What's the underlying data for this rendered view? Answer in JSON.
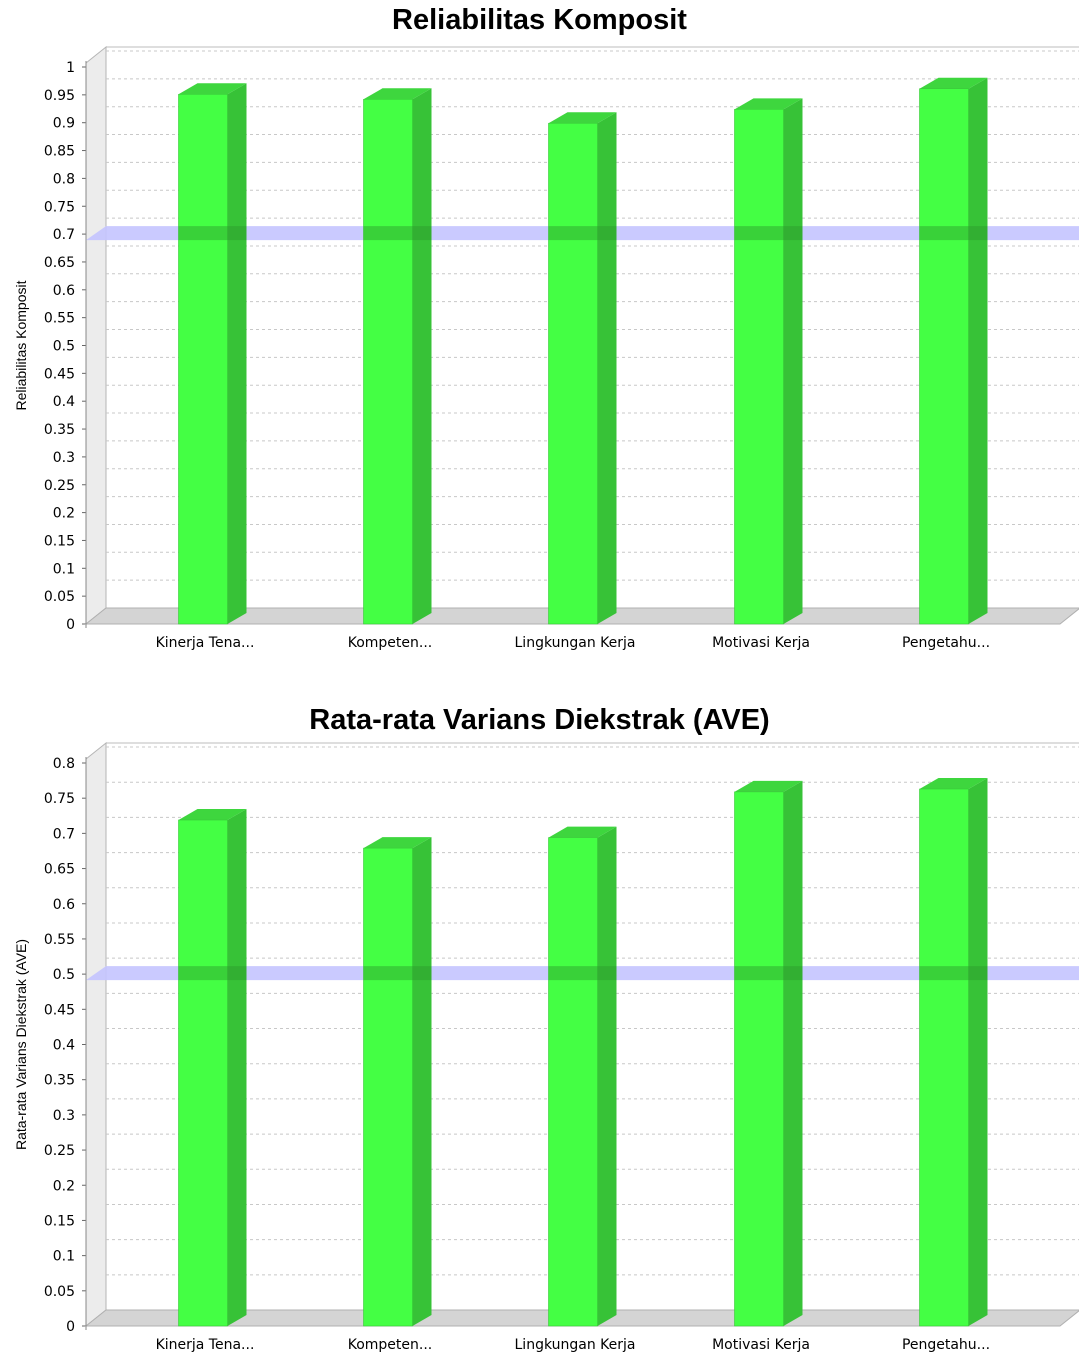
{
  "chart_data": [
    {
      "type": "bar",
      "title": "Reliabilitas Komposit",
      "xlabel": "",
      "ylabel": "Reliabilitas Komposit",
      "categories": [
        "Kinerja Tena...",
        "Kompeten...",
        "Lingkungan Kerja",
        "Motivasi Kerja",
        "Pengetahu..."
      ],
      "values": [
        0.951,
        0.942,
        0.899,
        0.924,
        0.961
      ],
      "threshold": 0.7,
      "ylim": [
        0,
        1
      ],
      "yticks": [
        "0",
        "0.05",
        "0.1",
        "0.15",
        "0.2",
        "0.25",
        "0.3",
        "0.35",
        "0.4",
        "0.45",
        "0.5",
        "0.55",
        "0.6",
        "0.65",
        "0.7",
        "0.75",
        "0.8",
        "0.85",
        "0.9",
        "0.95",
        "1"
      ],
      "grid": true,
      "style_3d": true,
      "colors": {
        "bar_front": "#44ff44",
        "bar_side": "#37c237",
        "bar_top": "#3ed63e",
        "threshold": "#c4c4ff",
        "grid": "#c8c8c8",
        "floor": "#d4d4d4"
      }
    },
    {
      "type": "bar",
      "title": "Rata-rata Varians Diekstrak (AVE)",
      "xlabel": "",
      "ylabel": "Rata-rata Varians Diekstrak (AVE)",
      "categories": [
        "Kinerja Tena...",
        "Kompeten...",
        "Lingkungan Kerja",
        "Motivasi Kerja",
        "Pengetahu..."
      ],
      "values": [
        0.719,
        0.679,
        0.694,
        0.759,
        0.763
      ],
      "threshold": 0.5,
      "ylim": [
        0,
        0.8
      ],
      "yticks": [
        "0",
        "0.05",
        "0.1",
        "0.15",
        "0.2",
        "0.25",
        "0.3",
        "0.35",
        "0.4",
        "0.45",
        "0.5",
        "0.55",
        "0.6",
        "0.65",
        "0.7",
        "0.75",
        "0.8"
      ],
      "grid": true,
      "style_3d": true,
      "colors": {
        "bar_front": "#44ff44",
        "bar_side": "#37c237",
        "bar_top": "#3ed63e",
        "threshold": "#c4c4ff",
        "grid": "#c8c8c8",
        "floor": "#d4d4d4"
      }
    }
  ]
}
